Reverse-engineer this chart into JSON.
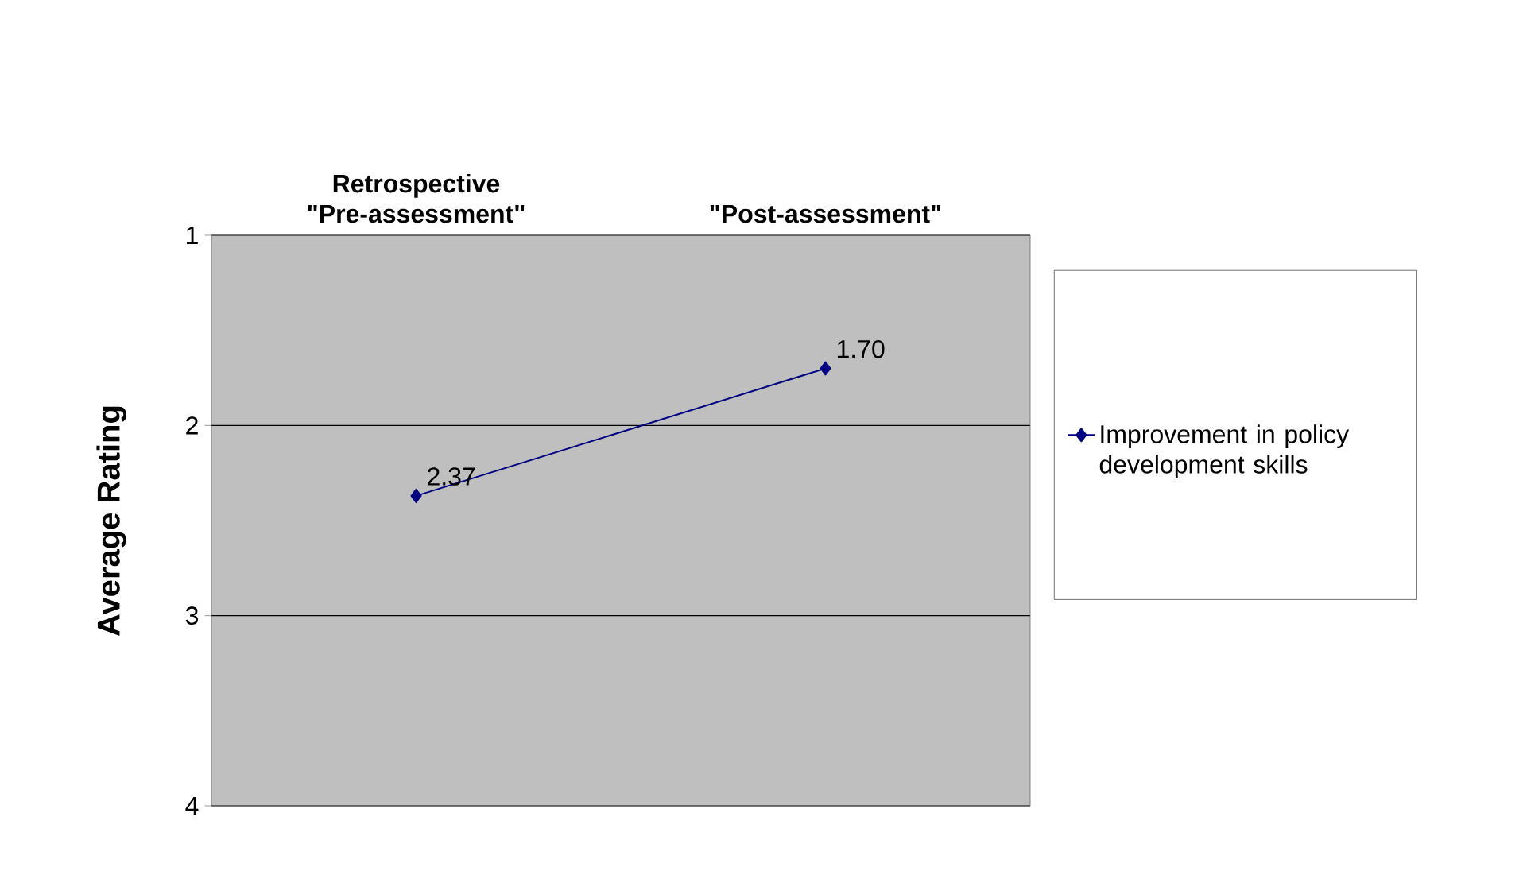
{
  "chart_data": {
    "type": "line",
    "ylabel": "Average Rating",
    "categories": [
      "Retrospective \"Pre-assessment\"",
      "\"Post-assessment\""
    ],
    "series": [
      {
        "name": "Improvement in policy development skills",
        "color": "#000080",
        "values": [
          2.37,
          1.7
        ],
        "value_labels": [
          "2.37",
          "1.70"
        ]
      }
    ],
    "ylim": [
      4,
      1
    ],
    "yticks": [
      1,
      2,
      3,
      4
    ],
    "grid": "y",
    "legend": "right",
    "marker": "diamond",
    "line_style": "solid"
  }
}
